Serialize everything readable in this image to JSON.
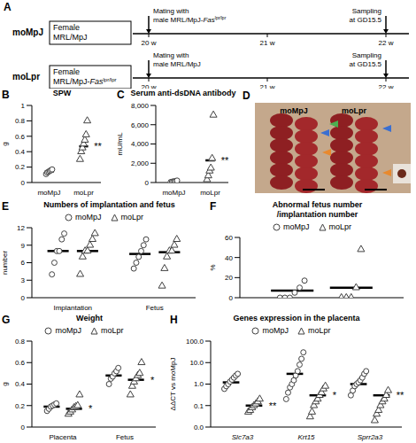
{
  "diagram": {
    "label": "A",
    "weeks": [
      "20 w",
      "21 w",
      "22 w"
    ],
    "rows": [
      {
        "name": "moMpJ",
        "female": [
          [
            {
              "t": "Female"
            }
          ],
          [
            {
              "t": "MRL/MpJ"
            }
          ]
        ],
        "event_start": [
          [
            {
              "t": "Mating with"
            }
          ],
          [
            {
              "t": "male MRL/MpJ-"
            },
            {
              "t": "Fas",
              "i": true
            },
            {
              "t": "lpr/lpr",
              "sup": true
            }
          ]
        ],
        "event_end": [
          [
            {
              "t": "Sampling"
            }
          ],
          [
            {
              "t": "at GD15.5"
            }
          ]
        ]
      },
      {
        "name": "moLpr",
        "female": [
          [
            {
              "t": "Female"
            }
          ],
          [
            {
              "t": "MRL/MpJ-"
            },
            {
              "t": "Fas",
              "i": true
            },
            {
              "t": "lpr/lpr",
              "sup": true
            }
          ]
        ],
        "event_start": [
          [
            {
              "t": "Mating with"
            }
          ],
          [
            {
              "t": "male MRL/MpJ"
            }
          ]
        ],
        "event_end": [
          [
            {
              "t": "Sampling"
            }
          ],
          [
            {
              "t": "at GD15.5"
            }
          ]
        ]
      }
    ]
  },
  "photo": {
    "label": "D",
    "labels": [
      "moMpJ",
      "moLpr"
    ]
  },
  "chart_data": [
    {
      "label": "B",
      "type": "scatter",
      "title": [
        "SPW"
      ],
      "y_label": "g",
      "ylim": [
        0,
        1
      ],
      "yticks": [
        0,
        0.2,
        0.4,
        0.6,
        0.8,
        1
      ],
      "series": [
        {
          "name": "moMpJ",
          "marker": "circle",
          "color": "#404040",
          "values": [
            0.11,
            0.13,
            0.14,
            0.15,
            0.16,
            0.17
          ],
          "mean": 0.14
        },
        {
          "name": "moLpr",
          "marker": "triangle",
          "color": "#404040",
          "values": [
            0.3,
            0.4,
            0.45,
            0.5,
            0.55,
            0.62,
            0.8
          ],
          "mean": 0.47
        }
      ],
      "annotations": [
        {
          "text": "**",
          "category": "moLpr"
        }
      ]
    },
    {
      "label": "C",
      "type": "scatter",
      "title": [
        "Serum anti-dsDNA antibody"
      ],
      "y_label": "mU/mL",
      "ylim": [
        0,
        8000
      ],
      "yticks": [
        0,
        {
          "value": 2000,
          "label": "2,000"
        },
        {
          "value": 4000,
          "label": "4,000"
        },
        {
          "value": 6000,
          "label": "6,000"
        },
        {
          "value": 8000,
          "label": "8,000"
        }
      ],
      "series": [
        {
          "name": "moMpJ",
          "marker": "circle",
          "color": "#404040",
          "values": [
            50,
            80,
            100,
            120,
            150,
            200
          ],
          "mean": 110
        },
        {
          "name": "moLpr",
          "marker": "triangle",
          "color": "#404040",
          "values": [
            300,
            700,
            1200,
            1500,
            2500,
            7000
          ],
          "mean": 2300
        }
      ],
      "annotations": [
        {
          "text": "**",
          "category": "moLpr"
        }
      ]
    },
    {
      "label": "E",
      "type": "scatter",
      "title": [
        "Numbers of implantation and fetus"
      ],
      "y_label": "number",
      "legend": "top",
      "categories": [
        "Implantation",
        "Fetus"
      ],
      "ylim": [
        0,
        12
      ],
      "yticks": [
        0,
        3,
        6,
        9,
        12
      ],
      "series": [
        {
          "name": "moMpJ",
          "marker": "circle",
          "color": "#404040",
          "values": [
            [
              4,
              6,
              8,
              8,
              10,
              11
            ],
            [
              5,
              6,
              7,
              8,
              9,
              10
            ]
          ],
          "means": [
            8,
            7.5
          ]
        },
        {
          "name": "moLpr",
          "marker": "triangle",
          "color": "#404040",
          "values": [
            [
              4,
              7,
              8,
              8,
              9,
              10,
              11
            ],
            [
              2,
              5,
              7,
              8,
              8,
              9,
              10
            ]
          ],
          "means": [
            8,
            7.8
          ]
        }
      ],
      "annotations": []
    },
    {
      "label": "F",
      "type": "scatter",
      "title": [
        "Abnormal fetus number",
        "/implantation number"
      ],
      "y_label": "%",
      "legend": "top",
      "tick_labels": "y",
      "categories": [
        null
      ],
      "ylim": [
        0,
        60
      ],
      "yticks": [
        0,
        20,
        40,
        60
      ],
      "series": [
        {
          "name": "moMpJ",
          "marker": "circle",
          "color": "#404040",
          "values": [
            [
              0,
              0,
              0,
              5,
              10,
              17
            ]
          ],
          "means": [
            7
          ]
        },
        {
          "name": "moLpr",
          "marker": "triangle",
          "color": "#404040",
          "values": [
            [
              0,
              0,
              0,
              10,
              48
            ]
          ],
          "means": [
            10
          ]
        }
      ],
      "annotations": []
    },
    {
      "label": "G",
      "type": "scatter",
      "title": [
        "Weight"
      ],
      "y_label": "g",
      "legend": "top",
      "categories": [
        "Placenta",
        "Fetus"
      ],
      "ylim": [
        0,
        0.8
      ],
      "yticks": [
        0,
        0.2,
        0.4,
        0.6,
        0.8
      ],
      "series": [
        {
          "name": "moMpJ",
          "marker": "circle",
          "color": "#404040",
          "values": [
            [
              0.15,
              0.17,
              0.19,
              0.2,
              0.21,
              0.22
            ],
            [
              0.4,
              0.45,
              0.47,
              0.5,
              0.52,
              0.55
            ]
          ],
          "means": [
            0.19,
            0.48
          ]
        },
        {
          "name": "moLpr",
          "marker": "triangle",
          "color": "#404040",
          "values": [
            [
              0.12,
              0.14,
              0.16,
              0.18,
              0.19,
              0.2,
              0.3
            ],
            [
              0.3,
              0.38,
              0.42,
              0.45,
              0.48,
              0.5,
              0.6
            ]
          ],
          "means": [
            0.17,
            0.44
          ]
        }
      ],
      "annotations": [
        {
          "text": "*",
          "category": "Placenta",
          "series": "moLpr"
        },
        {
          "text": "*",
          "category": "Fetus",
          "series": "moLpr"
        }
      ]
    },
    {
      "label": "H",
      "type": "scatter",
      "title": [
        "Genes expression in the placenta"
      ],
      "y_label": "ΔΔCT vs moMpJ",
      "legend": "top",
      "log": "y",
      "categories": [
        "Slc7a3",
        "Krt15",
        "Sprr2a3"
      ],
      "ylim": [
        0.01,
        100
      ],
      "yticks": [
        {
          "value": 0.01,
          "label": "0.0"
        },
        {
          "value": 0.1,
          "label": "0.1"
        },
        {
          "value": 1,
          "label": "1.0"
        },
        {
          "value": 10,
          "label": "10.0"
        },
        {
          "value": 100,
          "label": "100.0"
        }
      ],
      "series": [
        {
          "name": "moMpJ",
          "marker": "circle",
          "color": "#404040",
          "values": [
            [
              0.6,
              0.8,
              1,
              1.3,
              1.6,
              2,
              2.5,
              3
            ],
            [
              0.2,
              0.4,
              0.7,
              1,
              1.5,
              2.5,
              4,
              8,
              15,
              30
            ],
            [
              0.3,
              0.5,
              0.8,
              1,
              1.2,
              1.5,
              2,
              3,
              4
            ]
          ],
          "means": [
            1.2,
            3,
            1
          ]
        },
        {
          "name": "moLpr",
          "marker": "triangle",
          "color": "#404040",
          "values": [
            [
              0.05,
              0.06,
              0.08,
              0.1,
              0.12,
              0.15,
              0.2
            ],
            [
              0.03,
              0.05,
              0.1,
              0.15,
              0.2,
              0.3,
              0.4,
              0.6,
              0.8
            ],
            [
              0.02,
              0.04,
              0.06,
              0.1,
              0.15,
              0.2,
              0.3,
              0.5
            ]
          ],
          "means": [
            0.1,
            0.3,
            0.3
          ]
        }
      ],
      "annotations": [
        {
          "text": "**",
          "category": "Slc7a3",
          "series": "moLpr"
        },
        {
          "text": "*",
          "category": "Krt15",
          "series": "moLpr"
        },
        {
          "text": "**",
          "category": "Sprr2a3",
          "series": "moLpr"
        }
      ]
    }
  ]
}
